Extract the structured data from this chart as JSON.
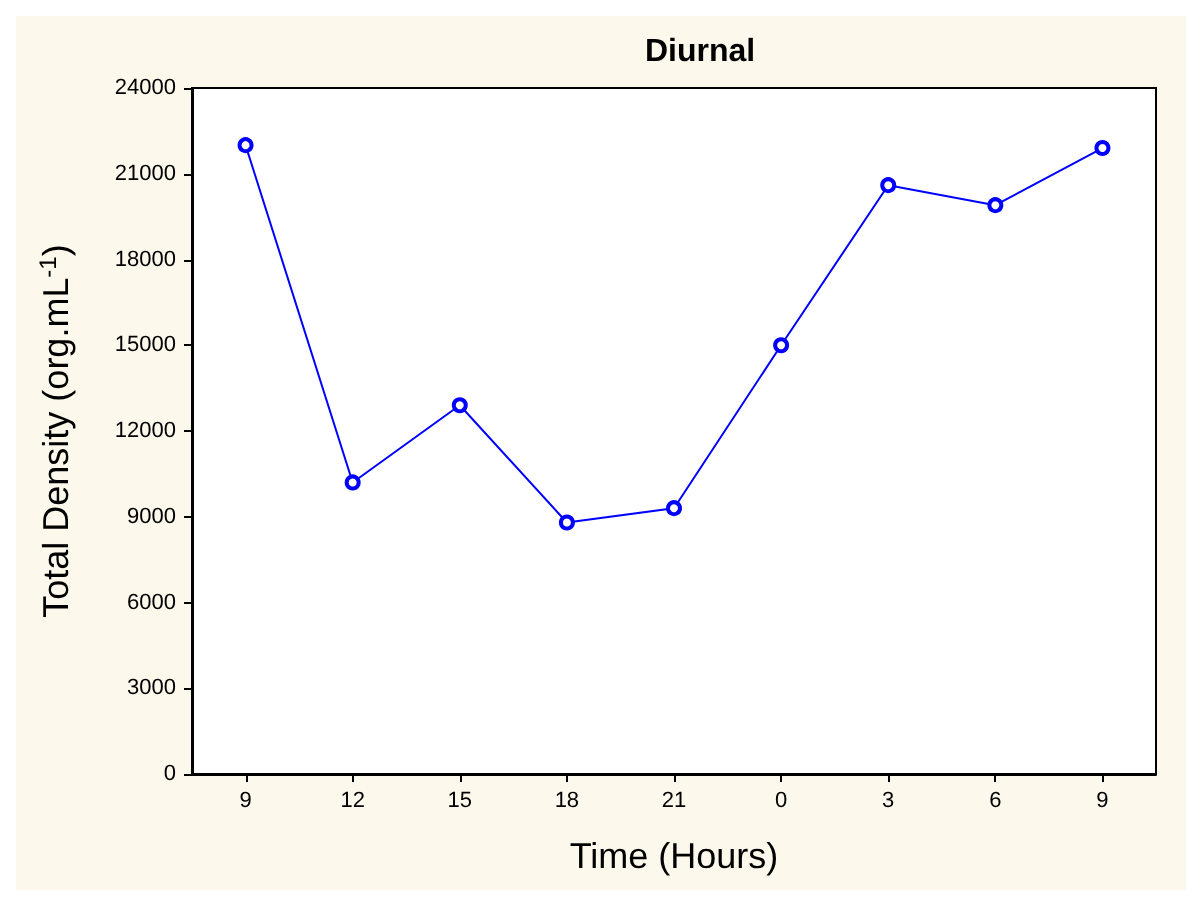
{
  "chart_data": {
    "type": "line",
    "title": "Diurnal",
    "xlabel": "Time (Hours)",
    "ylabel": "Total Density (org.mL$^{-1}$)",
    "categories": [
      "9",
      "12",
      "15",
      "18",
      "21",
      "0",
      "3",
      "6",
      "9"
    ],
    "series": [
      {
        "color": "#0000ff",
        "values": [
          22000,
          10200,
          12900,
          8800,
          9300,
          15000,
          20600,
          19900,
          21900
        ]
      }
    ],
    "ylim": [
      0,
      24000
    ],
    "yticks": [
      0,
      3000,
      6000,
      9000,
      12000,
      15000,
      18000,
      21000,
      24000
    ],
    "grid": false,
    "marker": "circle",
    "line_style": "solid"
  }
}
